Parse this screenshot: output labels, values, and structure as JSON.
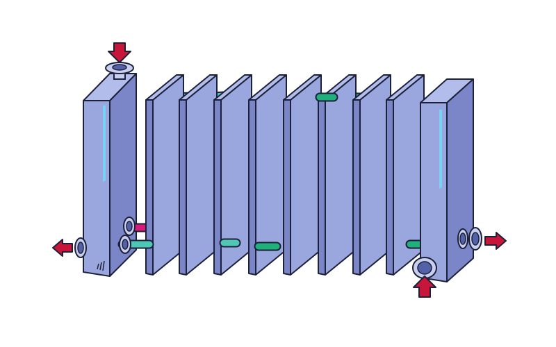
{
  "diagram": {
    "kind": "plate heat exchanger",
    "colors": {
      "background": "#ffffff",
      "plate_front": "#9aa6de",
      "plate_side": "#7a86c8",
      "plate_top": "#b3bdeb",
      "plate_highlight": "#78d2f4",
      "outline": "#1c2038",
      "hot_fluid": "#d81b78",
      "cold_fluid_light": "#4ec7b6",
      "cold_fluid_dark": "#1fb07c",
      "port_ring": "#c8cff0",
      "port_hole": "#5362a8",
      "flow_arrow": "#c8153a"
    },
    "icons": [
      "inlet-arrow-icon",
      "outlet-arrow-icon",
      "port-connector-icon"
    ],
    "plates": {
      "count": 8
    },
    "end_frames": {
      "count": 2
    },
    "ports": {
      "count": 6
    },
    "flow_arrows": [
      {
        "id": "hot-inlet",
        "direction": "down"
      },
      {
        "id": "hot-outlet",
        "direction": "left"
      },
      {
        "id": "cold-outlet",
        "direction": "right"
      },
      {
        "id": "cold-inlet",
        "direction": "up"
      }
    ]
  }
}
